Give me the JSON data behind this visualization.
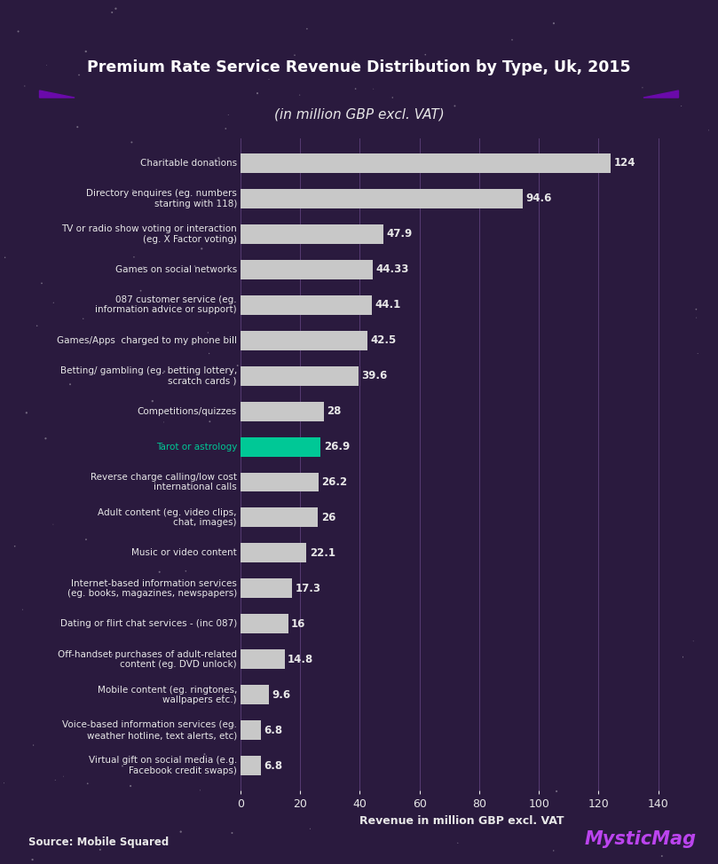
{
  "title": "Premium Rate Service Revenue Distribution by Type, Uk, 2015",
  "subtitle": "(in million GBP excl. VAT)",
  "xlabel": "Revenue in million GBP excl. VAT",
  "source": "Source: Mobile Squared",
  "watermark": "MysticMag",
  "categories": [
    "Charitable donations",
    "Directory enquires (eg. numbers\nstarting with 118)",
    "TV or radio show voting or interaction\n(eg. X Factor voting)",
    "Games on social networks",
    "087 customer service (eg.\ninformation advice or support)",
    "Games/Apps  charged to my phone bill",
    "Betting/ gambling (eg. betting lottery,\nscratch cards )",
    "Competitions/quizzes",
    "Tarot or astrology",
    "Reverse charge calling/low cost\ninternational calls",
    "Adult content (eg. video clips,\nchat, images)",
    "Music or video content",
    "Internet-based information services\n(eg. books, magazines, newspapers)",
    "Dating or flirt chat services - (inc 087)",
    "Off-handset purchases of adult-related\ncontent (eg. DVD unlock)",
    "Mobile content (eg. ringtones,\nwallpapers etc.)",
    "Voice-based information services (eg.\nweather hotline, text alerts, etc)",
    "Virtual gift on social media (e.g.\nFacebook credit swaps)"
  ],
  "values": [
    124,
    94.6,
    47.9,
    44.33,
    44.1,
    42.5,
    39.6,
    28,
    26.9,
    26.2,
    26,
    22.1,
    17.3,
    16,
    14.8,
    9.6,
    6.8,
    6.8
  ],
  "bar_colors": [
    "#c8c8c8",
    "#c8c8c8",
    "#c8c8c8",
    "#c8c8c8",
    "#c8c8c8",
    "#c8c8c8",
    "#c8c8c8",
    "#c8c8c8",
    "#00c896",
    "#c8c8c8",
    "#c8c8c8",
    "#c8c8c8",
    "#c8c8c8",
    "#c8c8c8",
    "#c8c8c8",
    "#c8c8c8",
    "#c8c8c8",
    "#c8c8c8"
  ],
  "highlight_label_color": "#00c896",
  "background_color": "#2a1a3e",
  "text_color": "#e8e8e8",
  "title_bg_color": "#9b30d0",
  "title_shadow_color": "#6a0aaa",
  "xlim": [
    0,
    148
  ],
  "xticks": [
    0,
    20,
    40,
    60,
    80,
    100,
    120,
    140
  ],
  "grid_color": "#6a4a8a",
  "value_label_color": "#e8e8e8",
  "bar_height": 0.55,
  "highlight_index": 8
}
